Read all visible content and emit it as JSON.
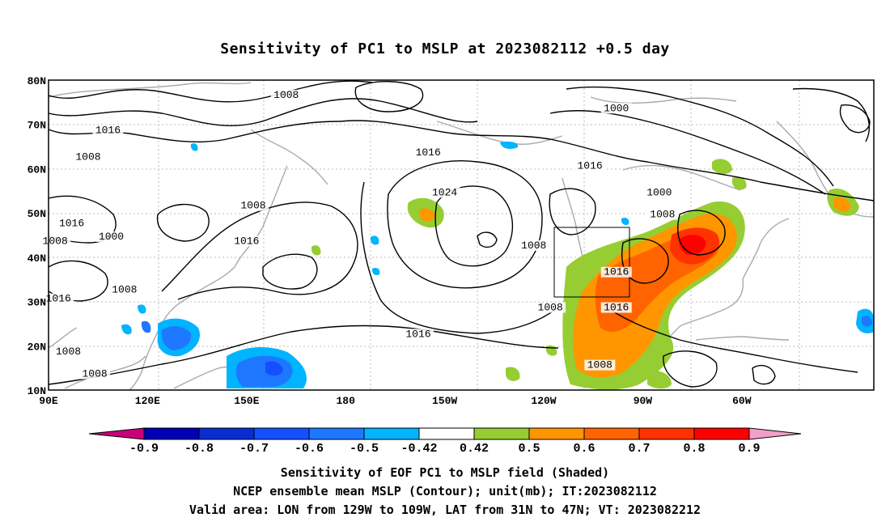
{
  "title": "Sensitivity of PC1 to MSLP at 2023082112 +0.5 day",
  "map": {
    "lat_labels": [
      "80N",
      "70N",
      "60N",
      "50N",
      "40N",
      "30N",
      "20N",
      "10N"
    ],
    "lon_labels": [
      "90E",
      "120E",
      "150E",
      "180",
      "150W",
      "120W",
      "90W",
      "60W"
    ],
    "contour_labels": [
      {
        "text": "1008",
        "lon": 162,
        "lat": 76
      },
      {
        "text": "1016",
        "lon": 108,
        "lat": 68
      },
      {
        "text": "1008",
        "lon": 102,
        "lat": 62
      },
      {
        "text": "1000",
        "lon": 262,
        "lat": 73
      },
      {
        "text": "1016",
        "lon": 205,
        "lat": 63
      },
      {
        "text": "1016",
        "lon": 254,
        "lat": 60
      },
      {
        "text": "1024",
        "lon": 210,
        "lat": 54
      },
      {
        "text": "1008",
        "lon": 152,
        "lat": 51
      },
      {
        "text": "1000",
        "lon": 275,
        "lat": 54
      },
      {
        "text": "1008",
        "lon": 276,
        "lat": 49
      },
      {
        "text": "1016",
        "lon": 97,
        "lat": 47
      },
      {
        "text": "1000",
        "lon": 109,
        "lat": 44
      },
      {
        "text": "1008",
        "lon": 92,
        "lat": 43
      },
      {
        "text": "1016",
        "lon": 150,
        "lat": 43
      },
      {
        "text": "1008",
        "lon": 237,
        "lat": 42
      },
      {
        "text": "1016",
        "lon": 262,
        "lat": 36
      },
      {
        "text": "1008",
        "lon": 113,
        "lat": 32
      },
      {
        "text": "1016",
        "lon": 93,
        "lat": 30
      },
      {
        "text": "1008",
        "lon": 242,
        "lat": 28
      },
      {
        "text": "1016",
        "lon": 262,
        "lat": 28
      },
      {
        "text": "1016",
        "lon": 202,
        "lat": 22
      },
      {
        "text": "1008",
        "lon": 96,
        "lat": 18
      },
      {
        "text": "1008",
        "lon": 104,
        "lat": 13
      },
      {
        "text": "1008",
        "lon": 257,
        "lat": 15
      }
    ],
    "valid_area": {
      "lon_min": 231,
      "lon_max": 251,
      "lat_min": 31,
      "lat_max": 47
    }
  },
  "colorbar": {
    "labels": [
      "-0.9",
      "-0.8",
      "-0.7",
      "-0.6",
      "-0.5",
      "-0.42",
      "0.42",
      "0.5",
      "0.6",
      "0.7",
      "0.8",
      "0.9"
    ],
    "colors": [
      "#c8007a",
      "#0000b4",
      "#0a2dd2",
      "#1450ff",
      "#1e78ff",
      "#00b4ff",
      "#ffffff",
      "#96cd32",
      "#ff9600",
      "#ff6400",
      "#ff3200",
      "#ff0000",
      "#f0a0c8"
    ]
  },
  "captions": {
    "line1": "Sensitivity of EOF PC1 to MSLP field (Shaded)",
    "line2": "NCEP ensemble mean MSLP (Contour); unit(mb); IT:2023082112",
    "line3": "Valid area: LON from 129W to 109W, LAT from 31N to 47N; VT: 2023082212"
  }
}
